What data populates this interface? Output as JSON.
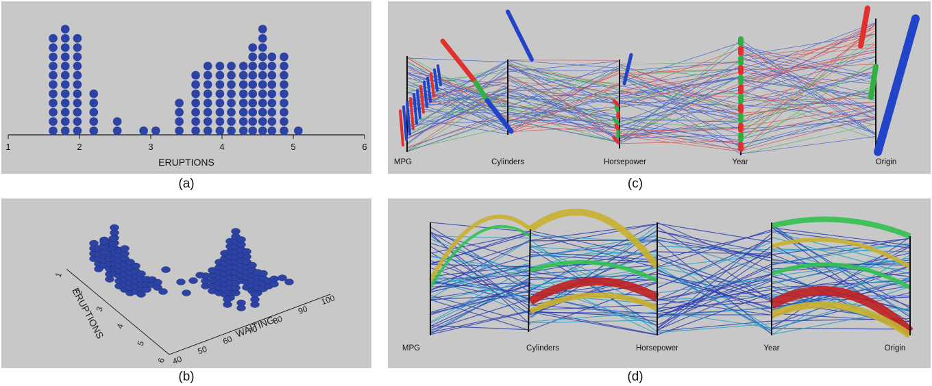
{
  "captions": [
    "(a)",
    "(b)",
    "(c)",
    "(d)"
  ],
  "chart_data": [
    {
      "panel": "(a)",
      "type": "scatter",
      "xlabel": "ERUPTIONS",
      "xlim": [
        1,
        6
      ],
      "x_ticks": [
        "1",
        "2",
        "3",
        "4",
        "5",
        "6"
      ],
      "dot_color": "#2c43a4",
      "stacks": [
        {
          "x": 1.63,
          "count": 11
        },
        {
          "x": 1.8,
          "count": 12
        },
        {
          "x": 1.97,
          "count": 11
        },
        {
          "x": 2.2,
          "count": 5
        },
        {
          "x": 2.53,
          "count": 2
        },
        {
          "x": 2.9,
          "count": 1
        },
        {
          "x": 3.07,
          "count": 1
        },
        {
          "x": 3.4,
          "count": 4
        },
        {
          "x": 3.63,
          "count": 7
        },
        {
          "x": 3.8,
          "count": 8
        },
        {
          "x": 3.97,
          "count": 8
        },
        {
          "x": 4.13,
          "count": 8
        },
        {
          "x": 4.3,
          "count": 8
        },
        {
          "x": 4.43,
          "count": 10
        },
        {
          "x": 4.57,
          "count": 12
        },
        {
          "x": 4.7,
          "count": 9
        },
        {
          "x": 4.87,
          "count": 9
        },
        {
          "x": 5.07,
          "count": 1
        }
      ]
    },
    {
      "panel": "(b)",
      "type": "scatter",
      "xlabel": "ERUPTIONS",
      "ylabel": "WAITING",
      "eruptions_ticks": [
        "1",
        "2",
        "3",
        "4",
        "5",
        "6"
      ],
      "waiting_ticks": [
        "40",
        "50",
        "60",
        "70",
        "80",
        "90",
        "100"
      ],
      "dot_color": "#2c43a4"
    },
    {
      "panel": "(c)",
      "type": "parallel-coordinates",
      "axes": [
        "MPG",
        "Cylinders",
        "Horsepower",
        "Year",
        "Origin"
      ],
      "series_colors": [
        "#2244c8",
        "#e03030",
        "#30b040"
      ]
    },
    {
      "panel": "(d)",
      "type": "parallel-coordinates",
      "axes": [
        "MPG",
        "Cylinders",
        "Horsepower",
        "Year",
        "Origin"
      ],
      "series_colors": [
        "#2a3cb0",
        "#22a0c8",
        "#30c050",
        "#c8b030",
        "#c02020"
      ]
    }
  ]
}
